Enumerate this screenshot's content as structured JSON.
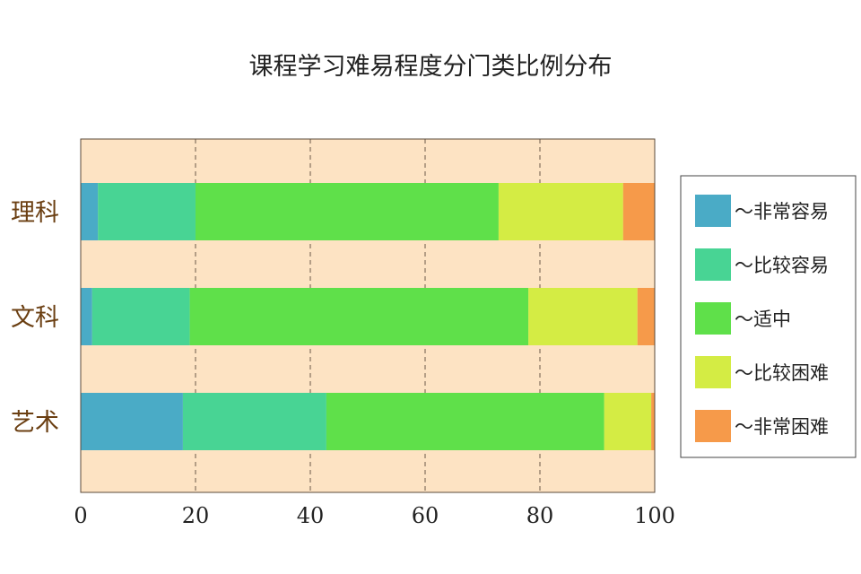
{
  "chart_data": {
    "type": "bar",
    "orientation": "horizontal",
    "stacked": true,
    "title": "课程学习难易程度分门类比例分布",
    "xlabel": "",
    "ylabel": "",
    "xlim": [
      0,
      100
    ],
    "x_ticks": [
      "0",
      "20",
      "40",
      "60",
      "80",
      "100"
    ],
    "grid": "vertical dashed",
    "legend_position": "right",
    "plot_background": "#fde3c3",
    "categories": [
      "理科",
      "文科",
      "艺术"
    ],
    "series": [
      {
        "name": "～非常容易",
        "color": "#4aabc6",
        "values": [
          3.0,
          2.0,
          17.8
        ]
      },
      {
        "name": "～比较容易",
        "color": "#48d494",
        "values": [
          17.0,
          17.0,
          25.0
        ]
      },
      {
        "name": "～适中",
        "color": "#5fe04a",
        "values": [
          52.8,
          59.0,
          48.4
        ]
      },
      {
        "name": "～比较困难",
        "color": "#d4ec44",
        "values": [
          21.7,
          19.0,
          8.2
        ]
      },
      {
        "name": "～非常困难",
        "color": "#f69a4a",
        "values": [
          5.5,
          3.0,
          0.6
        ]
      }
    ]
  }
}
